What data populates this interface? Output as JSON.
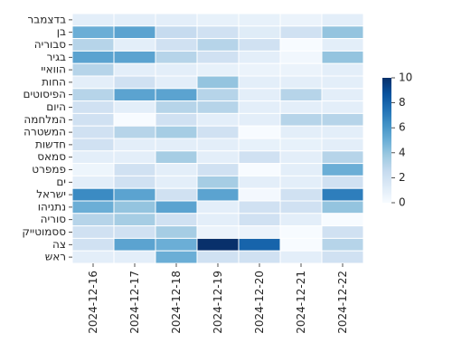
{
  "chart_data": {
    "type": "heatmap",
    "title": "",
    "xlabel": "",
    "ylabel": "",
    "x": [
      "2024-12-16",
      "2024-12-17",
      "2024-12-18",
      "2024-12-19",
      "2024-12-20",
      "2024-12-21",
      "2024-12-22"
    ],
    "y": [
      "בדצמבר",
      "בן",
      "סבוריה",
      "בגיר",
      "הוואיי",
      "החות",
      "הפיסוטים",
      "היום",
      "המלחמה",
      "המשטרה",
      "חדשות",
      "סמאס",
      "פמפרט",
      "ים",
      "ישראל",
      "נתניהו",
      "סוריה",
      "ססמוטייק",
      "צה",
      "ראש"
    ],
    "values": [
      [
        1,
        1,
        1,
        0.8,
        0.8,
        0.6,
        1
      ],
      [
        5,
        5.5,
        2.5,
        2,
        1.2,
        2,
        4
      ],
      [
        3,
        1,
        2,
        3,
        2,
        0,
        1
      ],
      [
        5.5,
        5.5,
        3,
        2,
        1,
        0.3,
        4
      ],
      [
        3,
        1,
        1,
        0.8,
        0.6,
        0.6,
        1
      ],
      [
        1,
        2,
        1,
        4,
        1,
        1,
        1
      ],
      [
        3,
        5.5,
        5.5,
        3,
        1,
        3,
        1
      ],
      [
        2,
        1,
        3,
        3,
        1,
        1,
        1
      ],
      [
        2,
        0,
        2,
        1,
        1,
        3,
        3
      ],
      [
        2,
        3,
        3.5,
        2,
        0,
        1,
        1
      ],
      [
        2,
        1,
        1,
        1,
        0.8,
        0.8,
        1
      ],
      [
        1,
        1,
        3.5,
        1,
        2,
        1,
        3
      ],
      [
        0.5,
        2,
        1,
        2,
        0,
        1,
        5
      ],
      [
        1,
        2,
        1,
        3.5,
        1,
        1,
        2
      ],
      [
        6.5,
        5.5,
        2,
        5.5,
        0.2,
        2,
        7
      ],
      [
        5,
        4,
        5.5,
        1,
        2,
        2,
        4
      ],
      [
        3,
        3.5,
        2,
        1,
        2,
        1,
        0
      ],
      [
        2,
        2,
        3.5,
        0.6,
        0.6,
        0,
        2
      ],
      [
        2,
        5.5,
        5,
        10,
        8,
        0,
        3
      ],
      [
        1,
        1,
        5,
        2,
        2,
        1,
        2
      ]
    ],
    "colorbar": {
      "min": 0,
      "max": 10,
      "ticks": [
        0,
        2,
        4,
        6,
        8,
        10
      ]
    },
    "colormap": [
      "#f7fbff",
      "#deebf7",
      "#c6dbef",
      "#9ecae1",
      "#6baed6",
      "#4292c6",
      "#2171b5",
      "#08519c",
      "#08306b"
    ],
    "grid": true,
    "legend": "colorbar-right"
  }
}
